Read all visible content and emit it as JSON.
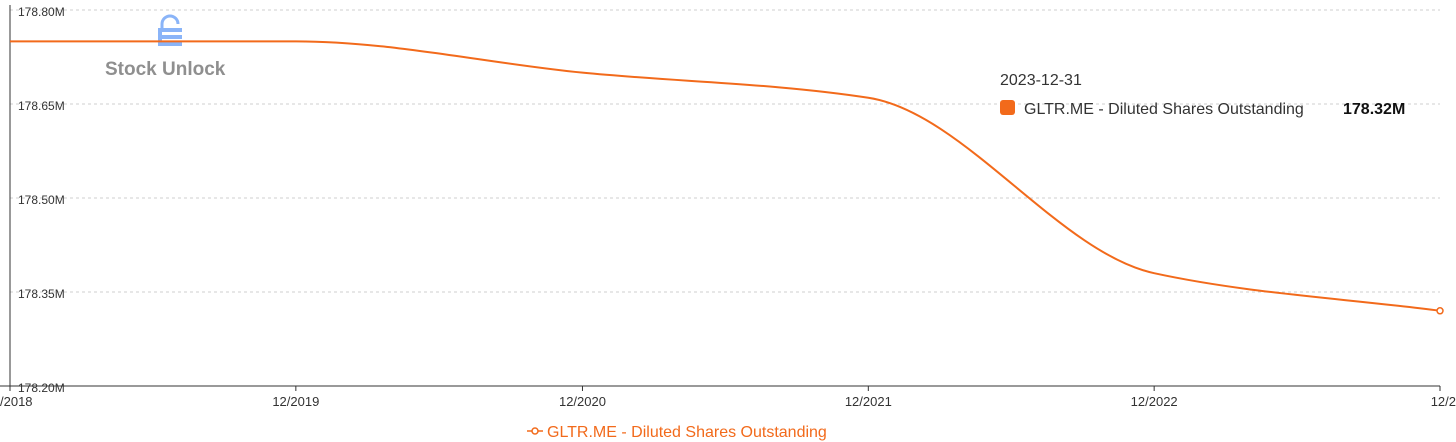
{
  "chart_data": {
    "type": "line",
    "title": "",
    "xlabel": "",
    "ylabel": "",
    "x_ticks": [
      "/2018",
      "12/2019",
      "12/2020",
      "12/2021",
      "12/2022",
      "12/2"
    ],
    "y_ticks": [
      "178.20M",
      "178.35M",
      "178.50M",
      "178.65M",
      "178.80M"
    ],
    "ylim": [
      178.2,
      178.8
    ],
    "grid": "horizontal-dashed",
    "legend_position": "bottom-center",
    "series": [
      {
        "name": "GLTR.ME - Diluted Shares Outstanding",
        "color": "#f26a1b",
        "x": [
          "2018-12-31",
          "2019-12-31",
          "2020-12-31",
          "2021-12-31",
          "2022-12-31",
          "2023-12-31"
        ],
        "values": [
          178.75,
          178.75,
          178.7,
          178.66,
          178.38,
          178.32
        ]
      }
    ],
    "tooltip": {
      "date": "2023-12-31",
      "series_name": "GLTR.ME - Diluted Shares Outstanding",
      "value": "178.32M"
    }
  },
  "watermark": {
    "text": "Stock Unlock",
    "icon": "lock-icon",
    "color": "#8ab4f8"
  }
}
